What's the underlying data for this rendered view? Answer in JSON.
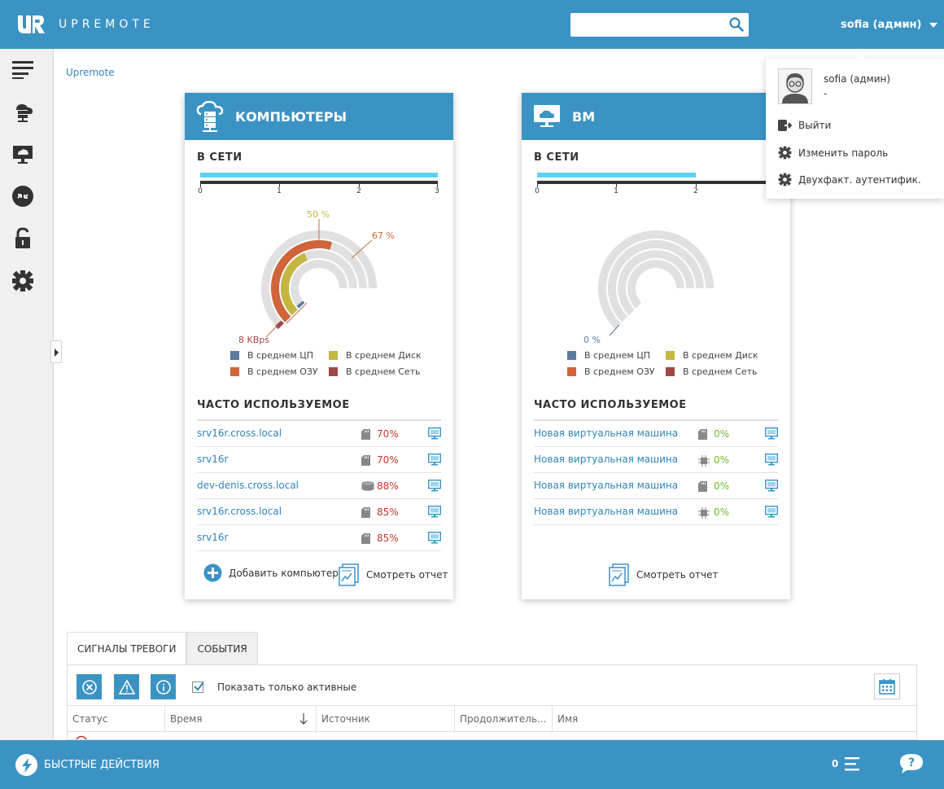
{
  "header": {
    "logo_text": "UPREMOTE",
    "search_placeholder": "",
    "user_label": "sofia (админ)"
  },
  "breadcrumb": "Upremote",
  "dropdown": {
    "name": "sofia (админ)",
    "role": "-",
    "items": [
      {
        "label": "Выйти",
        "icon": "logout-icon"
      },
      {
        "label": "Изменить пароль",
        "icon": "gear-icon"
      },
      {
        "label": "Двухфакт. аутентифик.",
        "icon": "gear-icon"
      }
    ]
  },
  "computers": {
    "title": "КОМПЬЮТЕРЫ",
    "online_title": "В СЕТИ",
    "online_value": 3,
    "online_max": 3,
    "ticks": [
      "0",
      "1",
      "2",
      "3"
    ],
    "gauge_labels": {
      "disk": "50 %",
      "ram": "67 %",
      "net": "8 KBps"
    },
    "gauge_values": {
      "cpu": 0.03,
      "ram": 0.67,
      "disk": 0.5,
      "net": 0.02
    },
    "legend": [
      "В среднем ЦП",
      "В среднем Диск",
      "В среднем ОЗУ",
      "В среднем Сеть"
    ],
    "frequent_title": "ЧАСТО ИСПОЛЬЗУЕМОЕ",
    "rows": [
      {
        "name": "srv16r.cross.local",
        "value": "70%",
        "icon": "memory-icon"
      },
      {
        "name": "srv16r",
        "value": "70%",
        "icon": "memory-icon"
      },
      {
        "name": "dev-denis.cross.local",
        "value": "88%",
        "icon": "disk-icon"
      },
      {
        "name": "srv16r.cross.local",
        "value": "85%",
        "icon": "memory-icon"
      },
      {
        "name": "srv16r",
        "value": "85%",
        "icon": "memory-icon"
      }
    ],
    "add_label": "Добавить компьютер",
    "report_label": "Смотреть отчет"
  },
  "vms": {
    "title": "ВМ",
    "online_title": "В СЕТИ",
    "online_value": 2,
    "online_max": 3,
    "ticks": [
      "0",
      "1",
      "2"
    ],
    "gauge_labels": {
      "cpu": "0 %"
    },
    "legend": [
      "В среднем ЦП",
      "В среднем Диск",
      "В среднем ОЗУ",
      "В среднем Сеть"
    ],
    "frequent_title": "ЧАСТО ИСПОЛЬЗУЕМОЕ",
    "rows": [
      {
        "name": "Новая виртуальная машина",
        "value": "0%",
        "icon": "memory-icon"
      },
      {
        "name": "Новая виртуальная машина",
        "value": "0%",
        "icon": "cpu-icon"
      },
      {
        "name": "Новая виртуальная машина",
        "value": "0%",
        "icon": "memory-icon"
      },
      {
        "name": "Новая виртуальная машина",
        "value": "0%",
        "icon": "cpu-icon"
      }
    ],
    "report_label": "Смотреть отчет"
  },
  "colors": {
    "accent": "#3b93c4",
    "cpu": "#5a7a9e",
    "disk": "#c4b640",
    "ram": "#d0643a",
    "net": "#a14848",
    "bar": "#5bd3f3",
    "danger": "#c0392b",
    "ok": "#6cbb2d"
  },
  "alarms": {
    "tabs": [
      "СИГНАЛЫ ТРЕВОГИ",
      "СОБЫТИЯ"
    ],
    "show_active_label": "Показать только активные",
    "columns": [
      "Статус",
      "Время",
      "Источник",
      "Продолжитель...",
      "Имя"
    ]
  },
  "bottom": {
    "quick_label": "БЫСТРЫЕ ДЕЙСТВИЯ",
    "count": "0"
  }
}
